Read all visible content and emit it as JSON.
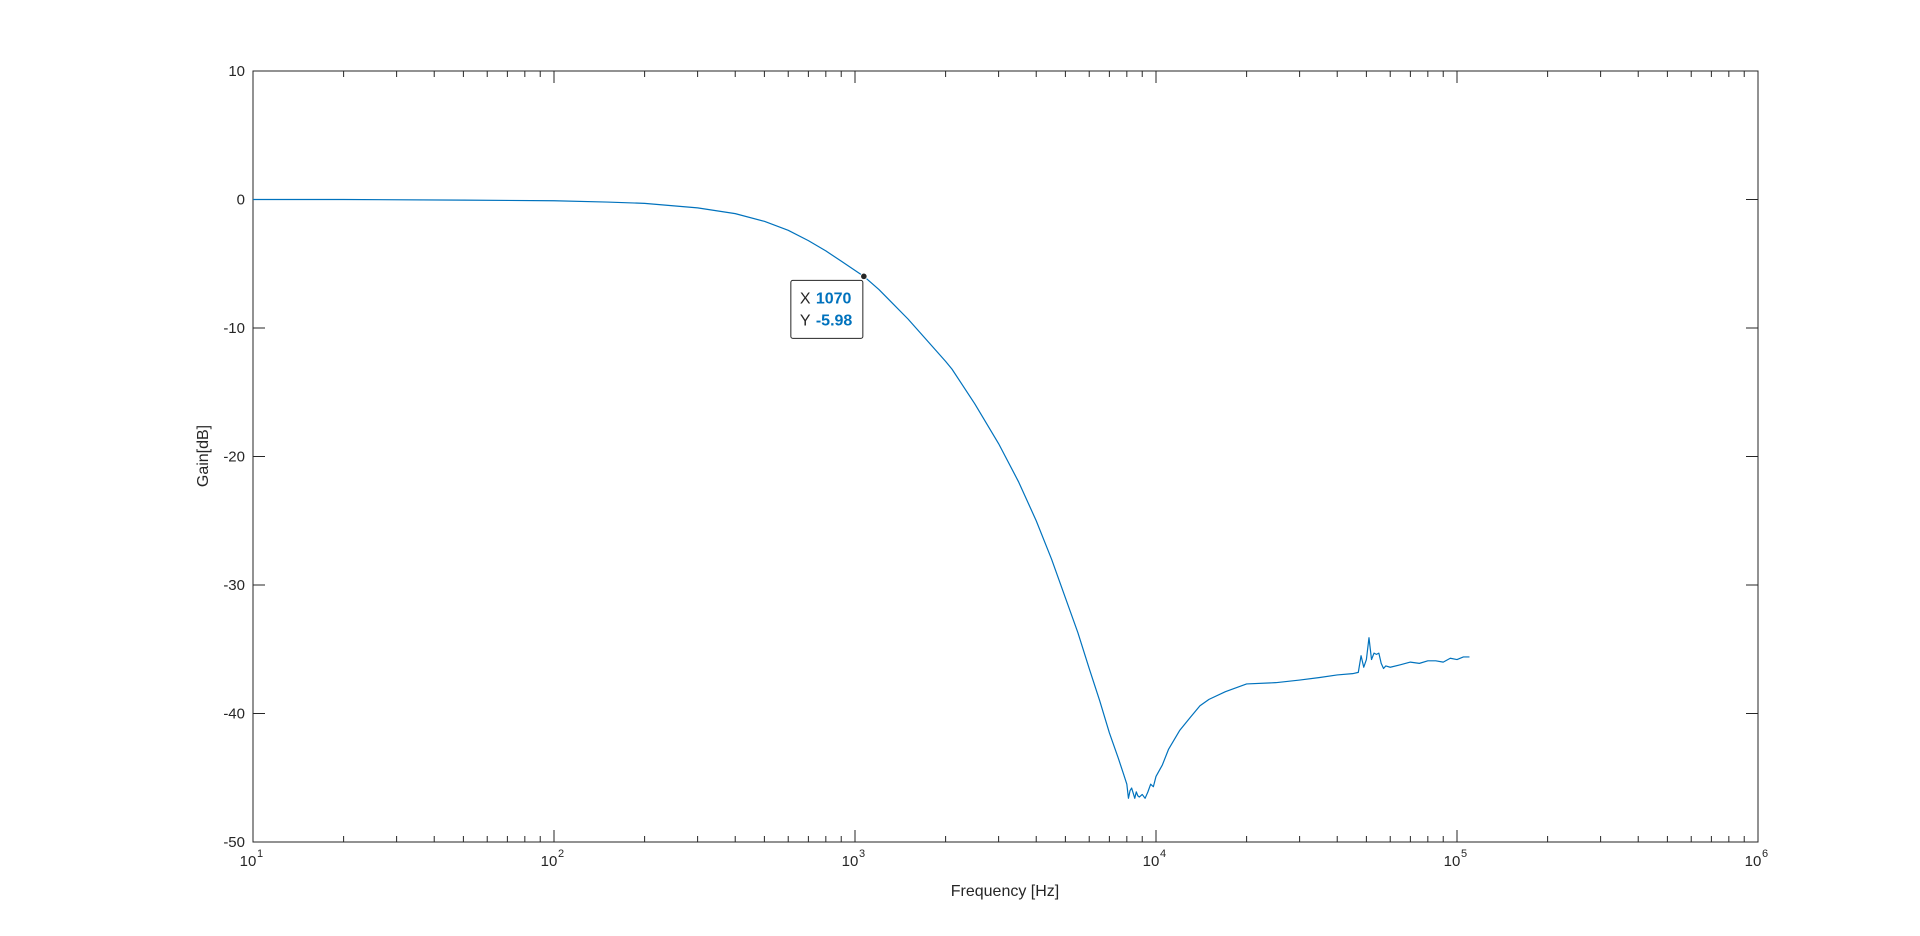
{
  "chart_data": {
    "type": "line",
    "xlabel": "Frequency [Hz]",
    "ylabel": "Gain[dB]",
    "xscale": "log",
    "xlim": [
      10,
      1000000
    ],
    "ylim": [
      -50,
      10
    ],
    "x_ticks": [
      {
        "value": 10,
        "base": "10",
        "exp": "1"
      },
      {
        "value": 100,
        "base": "10",
        "exp": "2"
      },
      {
        "value": 1000,
        "base": "10",
        "exp": "3"
      },
      {
        "value": 10000,
        "base": "10",
        "exp": "4"
      },
      {
        "value": 100000,
        "base": "10",
        "exp": "5"
      },
      {
        "value": 1000000,
        "base": "10",
        "exp": "6"
      }
    ],
    "y_ticks": [
      {
        "value": 10,
        "label": "10"
      },
      {
        "value": 0,
        "label": "0"
      },
      {
        "value": -10,
        "label": "-10"
      },
      {
        "value": -20,
        "label": "-20"
      },
      {
        "value": -30,
        "label": "-30"
      },
      {
        "value": -40,
        "label": "-40"
      },
      {
        "value": -50,
        "label": "-50"
      }
    ],
    "grid": false,
    "line_color": "#0072BD",
    "series": [
      {
        "x": [
          10,
          20,
          50,
          100,
          150,
          200,
          300,
          400,
          500,
          600,
          700,
          800,
          900,
          1070,
          1200,
          1500,
          2000,
          2100,
          2500,
          3000,
          3500,
          4000,
          4500,
          5000,
          5500,
          6000,
          6500,
          7000,
          7500,
          7800,
          8000,
          8100,
          8200,
          8300,
          8400,
          8500,
          8600,
          8700,
          8800,
          9000,
          9200,
          9400,
          9600,
          9800,
          10000,
          10500,
          11000,
          12000,
          13000,
          14000,
          15000,
          17000,
          20000,
          25000,
          30000,
          35000,
          40000,
          45000,
          47000,
          48000,
          49000,
          50000,
          51000,
          52000,
          53000,
          54000,
          55000,
          56000,
          57000,
          58000,
          60000,
          65000,
          70000,
          75000,
          80000,
          85000,
          90000,
          95000,
          100000,
          105000,
          110000
        ],
        "y": [
          0.0,
          0.0,
          -0.05,
          -0.1,
          -0.2,
          -0.3,
          -0.65,
          -1.1,
          -1.7,
          -2.4,
          -3.2,
          -4.0,
          -4.8,
          -5.98,
          -7.0,
          -9.3,
          -12.6,
          -13.2,
          -15.9,
          -19.0,
          -22.0,
          -25.0,
          -28.0,
          -31.0,
          -33.7,
          -36.5,
          -39.0,
          -41.5,
          -43.5,
          -44.7,
          -45.5,
          -46.6,
          -46.0,
          -45.8,
          -46.2,
          -46.6,
          -46.1,
          -46.4,
          -46.5,
          -46.3,
          -46.6,
          -46.1,
          -45.5,
          -45.7,
          -44.9,
          -44.0,
          -42.8,
          -41.3,
          -40.3,
          -39.4,
          -38.9,
          -38.3,
          -37.7,
          -37.6,
          -37.4,
          -37.2,
          -37.0,
          -36.9,
          -36.8,
          -35.5,
          -36.4,
          -35.8,
          -34.1,
          -35.8,
          -35.3,
          -35.4,
          -35.3,
          -36.1,
          -36.5,
          -36.3,
          -36.4,
          -36.2,
          -36.0,
          -36.1,
          -35.9,
          -35.9,
          -36.0,
          -35.7,
          -35.8,
          -35.6,
          -35.6
        ]
      }
    ],
    "datatip": {
      "x_label": "X",
      "x_value": "1070",
      "y_label": "Y",
      "y_value": "-5.98",
      "x": 1070,
      "y": -5.98,
      "value_color": "#0072BD",
      "label_color": "#262626"
    }
  }
}
